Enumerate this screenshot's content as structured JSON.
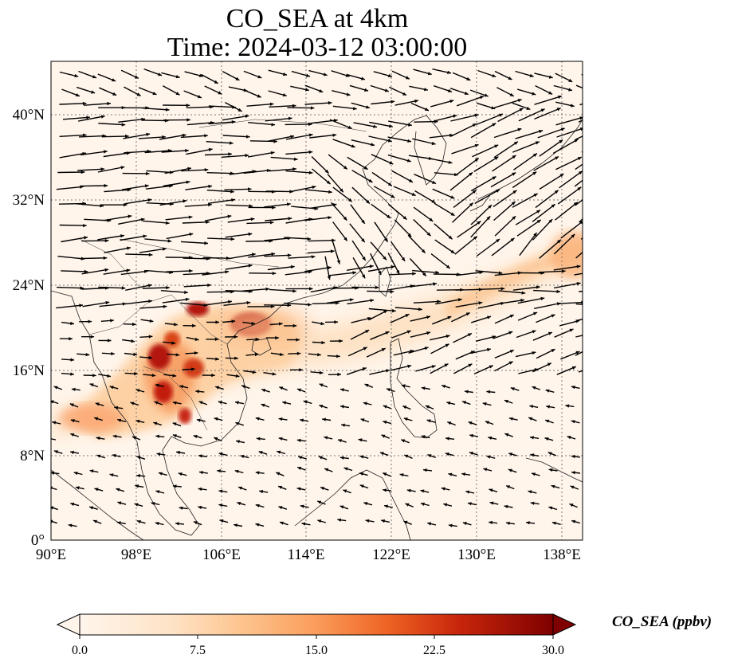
{
  "title": {
    "line1": "CO_SEA at 4km",
    "line2": "Time: 2024-03-12 03:00:00"
  },
  "map": {
    "lon_range": [
      90,
      140
    ],
    "lat_range": [
      0,
      45
    ],
    "lon_ticks": [
      "90°E",
      "98°E",
      "106°E",
      "114°E",
      "122°E",
      "130°E",
      "138°E"
    ],
    "lat_ticks": [
      "0°",
      "8°N",
      "16°N",
      "24°N",
      "32°N",
      "40°N"
    ],
    "gridlines": true,
    "field": "CO_SEA concentration (ppbv) with wind vectors"
  },
  "colorbar": {
    "label": "CO_SEA (ppbv)",
    "ticks": [
      "0.0",
      "7.5",
      "15.0",
      "22.5",
      "30.0"
    ],
    "colormap": [
      "#fff5eb",
      "#fdd9b3",
      "#fdae6b",
      "#f16913",
      "#d94801",
      "#a63603",
      "#7f0000"
    ],
    "extend": "both"
  }
}
